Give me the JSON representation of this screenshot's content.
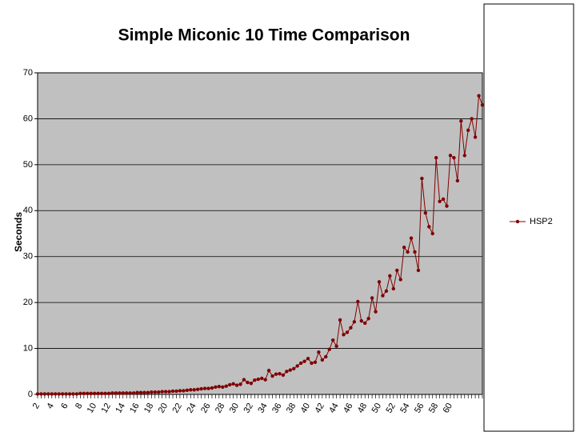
{
  "chart_data": {
    "type": "line",
    "title": "Simple Miconic 10 Time Comparison",
    "y_label": "Seconds",
    "categories": [
      "2",
      null,
      null,
      null,
      "4",
      null,
      null,
      null,
      "6",
      null,
      null,
      null,
      "8",
      null,
      null,
      null,
      "10",
      null,
      null,
      null,
      "12",
      null,
      null,
      null,
      "14",
      null,
      null,
      null,
      "16",
      null,
      null,
      null,
      "18",
      null,
      null,
      null,
      "20",
      null,
      null,
      null,
      "22",
      null,
      null,
      null,
      "24",
      null,
      null,
      null,
      "26",
      null,
      null,
      null,
      "28",
      null,
      null,
      null,
      "30",
      null,
      null,
      null,
      "32",
      null,
      null,
      null,
      "34",
      null,
      null,
      null,
      "36",
      null,
      null,
      null,
      "38",
      null,
      null,
      null,
      "40",
      null,
      null,
      null,
      "42",
      null,
      null,
      null,
      "44",
      null,
      null,
      null,
      "46",
      null,
      null,
      null,
      "48",
      null,
      null,
      null,
      "50",
      null,
      null,
      null,
      "52",
      null,
      null,
      null,
      "54",
      null,
      null,
      null,
      "56",
      null,
      null,
      null,
      "58",
      null,
      null,
      null,
      "60",
      null,
      null,
      null,
      null,
      null,
      null,
      null,
      null,
      null
    ],
    "series": [
      {
        "name": "HSP2",
        "color": "#800000",
        "values": [
          0.1,
          0.1,
          0.1,
          0.1,
          0.1,
          0.1,
          0.1,
          0.1,
          0.1,
          0.1,
          0.1,
          0.1,
          0.2,
          0.2,
          0.2,
          0.2,
          0.2,
          0.2,
          0.2,
          0.2,
          0.2,
          0.3,
          0.3,
          0.3,
          0.3,
          0.3,
          0.3,
          0.3,
          0.4,
          0.4,
          0.4,
          0.4,
          0.5,
          0.5,
          0.5,
          0.6,
          0.6,
          0.6,
          0.7,
          0.7,
          0.8,
          0.8,
          0.9,
          1.0,
          1.0,
          1.1,
          1.2,
          1.3,
          1.3,
          1.4,
          1.6,
          1.7,
          1.6,
          1.8,
          2.1,
          2.3,
          2.0,
          2.2,
          3.2,
          2.6,
          2.4,
          3.1,
          3.3,
          3.5,
          3.2,
          5.2,
          4.0,
          4.4,
          4.5,
          4.2,
          5.0,
          5.3,
          5.6,
          6.2,
          6.8,
          7.2,
          7.8,
          6.8,
          7.0,
          9.2,
          7.5,
          8.2,
          9.8,
          11.8,
          10.5,
          16.2,
          13.0,
          13.5,
          14.5,
          15.8,
          20.2,
          16.0,
          15.5,
          16.5,
          21.0,
          18.0,
          24.5,
          21.5,
          22.5,
          25.8,
          23.0,
          27.0,
          25.0,
          32.0,
          31.0,
          34.0,
          31.0,
          27.0,
          47.0,
          39.5,
          36.5,
          35.0,
          51.5,
          42.0,
          42.5,
          41.0,
          52.0,
          51.5,
          46.5,
          59.5,
          52.0,
          57.5,
          60.0,
          56.0,
          65.0,
          63.0
        ]
      }
    ],
    "ylim": [
      0,
      70
    ],
    "yticks": [
      0,
      10,
      20,
      30,
      40,
      50,
      60,
      70
    ],
    "grid": true,
    "legend": "right",
    "plot_background": "#c0c0c0"
  }
}
